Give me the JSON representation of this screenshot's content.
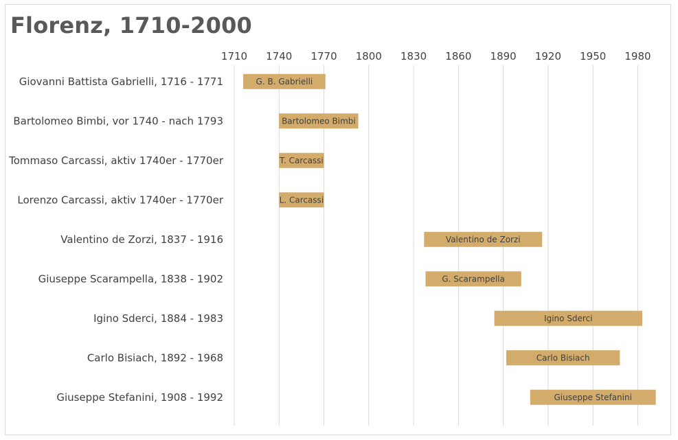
{
  "chart_data": {
    "type": "bar",
    "orientation": "horizontal",
    "subtype": "floating-range",
    "title": "Florenz, 1710-2000",
    "xlabel": "",
    "ylabel": "",
    "xlim": [
      1710,
      2000
    ],
    "xticks": [
      1710,
      1740,
      1770,
      1800,
      1830,
      1860,
      1890,
      1920,
      1950,
      1980
    ],
    "grid": "vertical",
    "legend": "none",
    "bar_color": "#d3ac6b",
    "gridline_color": "#d9d9d9",
    "categories": [
      "Giovanni Battista Gabrielli, 1716 - 1771",
      "Bartolomeo Bimbi, vor 1740 - nach 1793",
      "Tommaso Carcassi, aktiv 1740er - 1770er",
      "Lorenzo Carcassi, aktiv 1740er - 1770er",
      "Valentino de Zorzi, 1837 - 1916",
      "Giuseppe Scarampella, 1838 - 1902",
      "Igino Sderci, 1884 - 1983",
      "Carlo Bisiach, 1892 - 1968",
      "Giuseppe Stefanini, 1908 - 1992"
    ],
    "bar_labels": [
      "G. B. Gabrielli",
      "Bartolomeo Bimbi",
      "T. Carcassi",
      "L. Carcassi",
      "Valentino de Zorzi",
      "G. Scarampella",
      "Igino Sderci",
      "Carlo Bisiach",
      "Giuseppe Stefanini"
    ],
    "start": [
      1716,
      1740,
      1740,
      1740,
      1837,
      1838,
      1884,
      1892,
      1908
    ],
    "end": [
      1771,
      1793,
      1770,
      1770,
      1916,
      1902,
      1983,
      1968,
      1992
    ]
  }
}
